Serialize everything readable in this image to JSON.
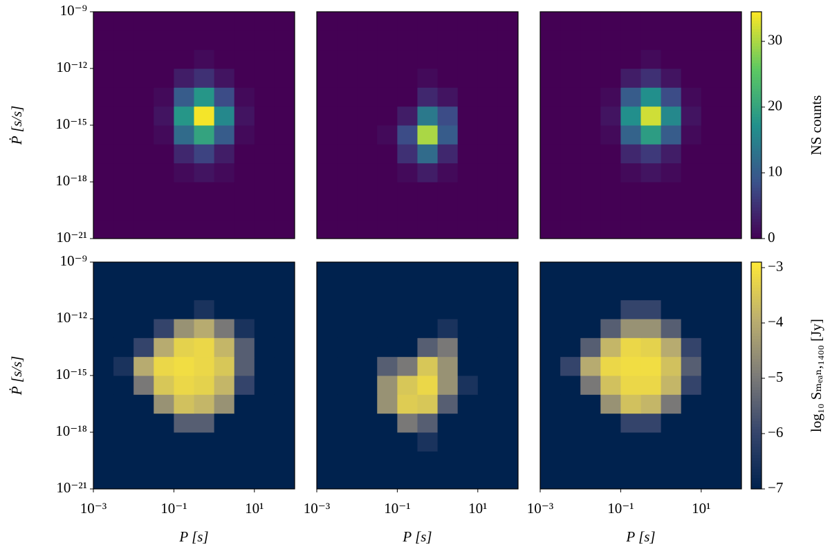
{
  "chart_data": [
    {
      "type": "heatmap",
      "log": true,
      "colormap": "viridis",
      "zlim": [
        0,
        34.5
      ],
      "xlim": [
        0.001,
        100
      ],
      "ylim": [
        1e-21,
        1e-09
      ],
      "xbins": [
        0.001,
        0.00316,
        0.01,
        0.0316,
        0.1,
        0.316,
        1,
        3.16,
        10,
        31.6,
        100
      ],
      "ybins": [
        1e-21,
        1e-20,
        1e-19,
        1e-18,
        1e-17,
        1e-16,
        1e-15,
        1e-14,
        1e-13,
        1e-12,
        1e-11,
        1e-10,
        1e-09
      ],
      "ylabel": "Ṗ [s/s]",
      "yticks": [
        {
          "value": 1e-21,
          "label": "10⁻²¹"
        },
        {
          "value": 1e-18,
          "label": "10⁻¹⁸"
        },
        {
          "value": 1e-15,
          "label": "10⁻¹⁵"
        },
        {
          "value": 1e-12,
          "label": "10⁻¹²"
        },
        {
          "value": 1e-09,
          "label": "10⁻⁹"
        }
      ],
      "z": [
        [
          0,
          0,
          0,
          0,
          0,
          0,
          0,
          0,
          0,
          0
        ],
        [
          0,
          0,
          0,
          0,
          0,
          0,
          0,
          0,
          0,
          0
        ],
        [
          0,
          0,
          0,
          0,
          0,
          0,
          0,
          0,
          0,
          0
        ],
        [
          0,
          0,
          0,
          0,
          1,
          2,
          1,
          0,
          0,
          0
        ],
        [
          0,
          0,
          0,
          0,
          4,
          7,
          3,
          0,
          0,
          0
        ],
        [
          0,
          0,
          0,
          1,
          12,
          20,
          10,
          1,
          0,
          0
        ],
        [
          0,
          0,
          0,
          2,
          18,
          34,
          16,
          2,
          0,
          0
        ],
        [
          0,
          0,
          0,
          1,
          10,
          18,
          8,
          1,
          0,
          0
        ],
        [
          0,
          0,
          0,
          0,
          3,
          5,
          2,
          0,
          0,
          0
        ],
        [
          0,
          0,
          0,
          0,
          0,
          1,
          0,
          0,
          0,
          0
        ],
        [
          0,
          0,
          0,
          0,
          0,
          0,
          0,
          0,
          0,
          0
        ],
        [
          0,
          0,
          0,
          0,
          0,
          0,
          0,
          0,
          0,
          0
        ]
      ]
    },
    {
      "type": "heatmap",
      "log": true,
      "colormap": "viridis",
      "zlim": [
        0,
        34.5
      ],
      "xlim": [
        0.001,
        100
      ],
      "ylim": [
        1e-21,
        1e-09
      ],
      "xbins": [
        0.001,
        0.00316,
        0.01,
        0.0316,
        0.1,
        0.316,
        1,
        3.16,
        10,
        31.6,
        100
      ],
      "ybins": [
        1e-21,
        1e-20,
        1e-19,
        1e-18,
        1e-17,
        1e-16,
        1e-15,
        1e-14,
        1e-13,
        1e-12,
        1e-11,
        1e-10,
        1e-09
      ],
      "z": [
        [
          0,
          0,
          0,
          0,
          0,
          0,
          0,
          0,
          0,
          0
        ],
        [
          0,
          0,
          0,
          0,
          0,
          0,
          0,
          0,
          0,
          0
        ],
        [
          0,
          0,
          0,
          0,
          0,
          0,
          0,
          0,
          0,
          0
        ],
        [
          0,
          0,
          0,
          0,
          1,
          3,
          1,
          0,
          0,
          0
        ],
        [
          0,
          0,
          0,
          0,
          5,
          12,
          4,
          0,
          0,
          0
        ],
        [
          0,
          0,
          0,
          1,
          8,
          30,
          10,
          0,
          0,
          0
        ],
        [
          0,
          0,
          0,
          0,
          3,
          14,
          8,
          0,
          0,
          0
        ],
        [
          0,
          0,
          0,
          0,
          0,
          4,
          2,
          0,
          0,
          0
        ],
        [
          0,
          0,
          0,
          0,
          0,
          1,
          0,
          0,
          0,
          0
        ],
        [
          0,
          0,
          0,
          0,
          0,
          0,
          0,
          0,
          0,
          0
        ],
        [
          0,
          0,
          0,
          0,
          0,
          0,
          0,
          0,
          0,
          0
        ],
        [
          0,
          0,
          0,
          0,
          0,
          0,
          0,
          0,
          0,
          0
        ]
      ]
    },
    {
      "type": "heatmap",
      "log": true,
      "colormap": "viridis",
      "zlim": [
        0,
        34.5
      ],
      "xlim": [
        0.001,
        100
      ],
      "ylim": [
        1e-21,
        1e-09
      ],
      "xbins": [
        0.001,
        0.00316,
        0.01,
        0.0316,
        0.1,
        0.316,
        1,
        3.16,
        10,
        31.6,
        100
      ],
      "ybins": [
        1e-21,
        1e-20,
        1e-19,
        1e-18,
        1e-17,
        1e-16,
        1e-15,
        1e-14,
        1e-13,
        1e-12,
        1e-11,
        1e-10,
        1e-09
      ],
      "colorbar": {
        "label": "NS counts",
        "ticks": [
          0,
          10,
          20,
          30
        ]
      },
      "z": [
        [
          0,
          0,
          0,
          0,
          0,
          0,
          0,
          0,
          0,
          0
        ],
        [
          0,
          0,
          0,
          0,
          0,
          0,
          0,
          0,
          0,
          0
        ],
        [
          0,
          0,
          0,
          0,
          0,
          0,
          0,
          0,
          0,
          0
        ],
        [
          0,
          0,
          0,
          0,
          1,
          2,
          1,
          0,
          0,
          0
        ],
        [
          0,
          0,
          0,
          0,
          4,
          6,
          3,
          0,
          0,
          0
        ],
        [
          0,
          0,
          0,
          1,
          11,
          19,
          10,
          1,
          0,
          0
        ],
        [
          0,
          0,
          0,
          2,
          17,
          32,
          16,
          2,
          0,
          0
        ],
        [
          0,
          0,
          0,
          1,
          10,
          17,
          8,
          1,
          0,
          0
        ],
        [
          0,
          0,
          0,
          0,
          3,
          5,
          2,
          0,
          0,
          0
        ],
        [
          0,
          0,
          0,
          0,
          0,
          1,
          0,
          0,
          0,
          0
        ],
        [
          0,
          0,
          0,
          0,
          0,
          0,
          0,
          0,
          0,
          0
        ],
        [
          0,
          0,
          0,
          0,
          0,
          0,
          0,
          0,
          0,
          0
        ]
      ]
    },
    {
      "type": "heatmap",
      "log": true,
      "colormap": "cividis",
      "zlim": [
        -7,
        -2.9
      ],
      "xlim": [
        0.001,
        100
      ],
      "ylim": [
        1e-21,
        1e-09
      ],
      "xbins": [
        0.001,
        0.00316,
        0.01,
        0.0316,
        0.1,
        0.316,
        1,
        3.16,
        10,
        31.6,
        100
      ],
      "ybins": [
        1e-21,
        1e-20,
        1e-19,
        1e-18,
        1e-17,
        1e-16,
        1e-15,
        1e-14,
        1e-13,
        1e-12,
        1e-11,
        1e-10,
        1e-09
      ],
      "ylabel": "Ṗ [s/s]",
      "xlabel": "P [s]",
      "yticks": [
        {
          "value": 1e-21,
          "label": "10⁻²¹"
        },
        {
          "value": 1e-18,
          "label": "10⁻¹⁸"
        },
        {
          "value": 1e-15,
          "label": "10⁻¹⁵"
        },
        {
          "value": 1e-12,
          "label": "10⁻¹²"
        },
        {
          "value": 1e-09,
          "label": "10⁻⁹"
        }
      ],
      "xticks": [
        {
          "value": 0.001,
          "label": "10⁻³"
        },
        {
          "value": 0.1,
          "label": "10⁻¹"
        },
        {
          "value": 10,
          "label": "10¹"
        }
      ],
      "z": [
        [
          -7,
          -7,
          -7,
          -7,
          -7,
          -7,
          -7,
          -7,
          -7,
          -7
        ],
        [
          -7,
          -7,
          -7,
          -7,
          -7,
          -7,
          -7,
          -7,
          -7,
          -7
        ],
        [
          -7,
          -7,
          -7,
          -7,
          -7,
          -7,
          -7,
          -7,
          -7,
          -7
        ],
        [
          -7,
          -7,
          -7,
          -7,
          -5.5,
          -5.5,
          -7,
          -7,
          -7,
          -7
        ],
        [
          -7,
          -7,
          -7,
          -4.5,
          -3.6,
          -3.8,
          -4.5,
          -7,
          -7,
          -7
        ],
        [
          -7,
          -7,
          -5,
          -3.5,
          -3.2,
          -3.3,
          -3.8,
          -6,
          -7,
          -7
        ],
        [
          -7,
          -6.5,
          -4,
          -3.2,
          -3.1,
          -3.2,
          -3.5,
          -5.5,
          -7,
          -7
        ],
        [
          -7,
          -7,
          -6,
          -4,
          -3.3,
          -3.2,
          -3.8,
          -5.5,
          -7,
          -7
        ],
        [
          -7,
          -7,
          -7,
          -6,
          -4.5,
          -4,
          -5,
          -6.5,
          -7,
          -7
        ],
        [
          -7,
          -7,
          -7,
          -7,
          -7,
          -6.5,
          -7,
          -7,
          -7,
          -7
        ],
        [
          -7,
          -7,
          -7,
          -7,
          -7,
          -7,
          -7,
          -7,
          -7,
          -7
        ],
        [
          -7,
          -7,
          -7,
          -7,
          -7,
          -7,
          -7,
          -7,
          -7,
          -7
        ]
      ]
    },
    {
      "type": "heatmap",
      "log": true,
      "colormap": "cividis",
      "zlim": [
        -7,
        -2.9
      ],
      "xlim": [
        0.001,
        100
      ],
      "ylim": [
        1e-21,
        1e-09
      ],
      "xbins": [
        0.001,
        0.00316,
        0.01,
        0.0316,
        0.1,
        0.316,
        1,
        3.16,
        10,
        31.6,
        100
      ],
      "ybins": [
        1e-21,
        1e-20,
        1e-19,
        1e-18,
        1e-17,
        1e-16,
        1e-15,
        1e-14,
        1e-13,
        1e-12,
        1e-11,
        1e-10,
        1e-09
      ],
      "xlabel": "P [s]",
      "xticks": [
        {
          "value": 0.001,
          "label": "10⁻³"
        },
        {
          "value": 0.1,
          "label": "10⁻¹"
        },
        {
          "value": 10,
          "label": "10¹"
        }
      ],
      "z": [
        [
          -7,
          -7,
          -7,
          -7,
          -7,
          -7,
          -7,
          -7,
          -7,
          -7
        ],
        [
          -7,
          -7,
          -7,
          -7,
          -7,
          -7,
          -7,
          -7,
          -7,
          -7
        ],
        [
          -7,
          -7,
          -7,
          -7,
          -7,
          -6.5,
          -7,
          -7,
          -7,
          -7
        ],
        [
          -7,
          -7,
          -7,
          -7,
          -5,
          -5.5,
          -7,
          -7,
          -7,
          -7
        ],
        [
          -7,
          -7,
          -7,
          -4.5,
          -3.4,
          -3.5,
          -5.5,
          -7,
          -7,
          -7
        ],
        [
          -7,
          -7,
          -7,
          -4.5,
          -3.5,
          -3.2,
          -4.5,
          -6.5,
          -7,
          -7
        ],
        [
          -7,
          -7,
          -7,
          -5.5,
          -5,
          -3.5,
          -4.5,
          -7,
          -7,
          -7
        ],
        [
          -7,
          -7,
          -7,
          -7,
          -7,
          -5.5,
          -5,
          -7,
          -7,
          -7
        ],
        [
          -7,
          -7,
          -7,
          -7,
          -7,
          -7,
          -6.5,
          -7,
          -7,
          -7
        ],
        [
          -7,
          -7,
          -7,
          -7,
          -7,
          -7,
          -7,
          -7,
          -7,
          -7
        ],
        [
          -7,
          -7,
          -7,
          -7,
          -7,
          -7,
          -7,
          -7,
          -7,
          -7
        ],
        [
          -7,
          -7,
          -7,
          -7,
          -7,
          -7,
          -7,
          -7,
          -7,
          -7
        ]
      ]
    },
    {
      "type": "heatmap",
      "log": true,
      "colormap": "cividis",
      "zlim": [
        -7,
        -2.9
      ],
      "xlim": [
        0.001,
        100
      ],
      "ylim": [
        1e-21,
        1e-09
      ],
      "xbins": [
        0.001,
        0.00316,
        0.01,
        0.0316,
        0.1,
        0.316,
        1,
        3.16,
        10,
        31.6,
        100
      ],
      "ybins": [
        1e-21,
        1e-20,
        1e-19,
        1e-18,
        1e-17,
        1e-16,
        1e-15,
        1e-14,
        1e-13,
        1e-12,
        1e-11,
        1e-10,
        1e-09
      ],
      "xlabel": "P [s]",
      "xticks": [
        {
          "value": 0.001,
          "label": "10⁻³"
        },
        {
          "value": 0.1,
          "label": "10⁻¹"
        },
        {
          "value": 10,
          "label": "10¹"
        }
      ],
      "colorbar": {
        "label": "log₁₀ Sₘₑₐₙ,₁₄₀₀ [Jy]",
        "ticks": [
          {
            "value": -7,
            "label": "−7"
          },
          {
            "value": -6,
            "label": "−6"
          },
          {
            "value": -5,
            "label": "−5"
          },
          {
            "value": -4,
            "label": "−4"
          },
          {
            "value": -3,
            "label": "−3"
          }
        ]
      },
      "z": [
        [
          -7,
          -7,
          -7,
          -7,
          -7,
          -7,
          -7,
          -7,
          -7,
          -7
        ],
        [
          -7,
          -7,
          -7,
          -7,
          -7,
          -7,
          -7,
          -7,
          -7,
          -7
        ],
        [
          -7,
          -7,
          -7,
          -7,
          -7,
          -7,
          -7,
          -7,
          -7,
          -7
        ],
        [
          -7,
          -7,
          -7,
          -7,
          -6,
          -6,
          -7,
          -7,
          -7,
          -7
        ],
        [
          -7,
          -7,
          -7,
          -4.5,
          -3.6,
          -3.8,
          -5,
          -7,
          -7,
          -7
        ],
        [
          -7,
          -7,
          -5,
          -3.6,
          -3.2,
          -3.2,
          -3.8,
          -6,
          -7,
          -7
        ],
        [
          -7,
          -6,
          -4,
          -3.2,
          -3.1,
          -3.1,
          -3.6,
          -5.5,
          -7,
          -7
        ],
        [
          -7,
          -7,
          -5.5,
          -3.8,
          -3.2,
          -3.3,
          -4,
          -6,
          -7,
          -7
        ],
        [
          -7,
          -7,
          -7,
          -5.5,
          -4.5,
          -4.5,
          -5.5,
          -7,
          -7,
          -7
        ],
        [
          -7,
          -7,
          -7,
          -7,
          -6,
          -6,
          -7,
          -7,
          -7,
          -7
        ],
        [
          -7,
          -7,
          -7,
          -7,
          -7,
          -7,
          -7,
          -7,
          -7,
          -7
        ],
        [
          -7,
          -7,
          -7,
          -7,
          -7,
          -7,
          -7,
          -7,
          -7,
          -7
        ]
      ]
    }
  ]
}
